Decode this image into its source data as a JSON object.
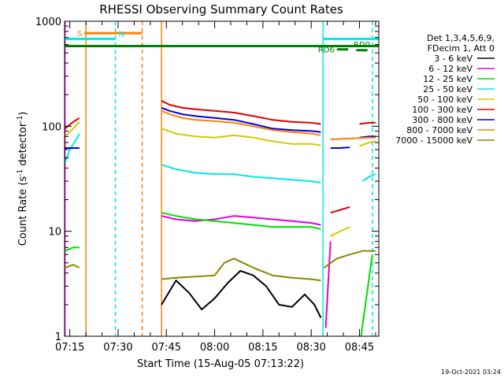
{
  "chart_data": {
    "type": "line",
    "title": "RHESSI Observing Summary Count Rates",
    "xlabel": "Start Time (15-Aug-05 07:13:22)",
    "ylabel_main": "Count Rate (s",
    "ylabel_sup1": "-1",
    "ylabel_mid": " detector",
    "ylabel_sup2": "-1",
    "ylabel_end": ")",
    "x_scale": "time",
    "y_scale": "log",
    "xlim": [
      "07:13:22",
      "08:51:00"
    ],
    "ylim": [
      1,
      1000
    ],
    "x_ticks": [
      "07:15",
      "07:30",
      "07:45",
      "08:00",
      "08:15",
      "08:30",
      "08:45"
    ],
    "y_ticks": [
      {
        "value": 1,
        "label": "1"
      },
      {
        "value": 10,
        "label": "10"
      },
      {
        "value": 100,
        "label": "100"
      },
      {
        "value": 1000,
        "label": "1000"
      }
    ],
    "legend_position": "right",
    "legend_header": [
      "Det 1,3,4,5,6,9,",
      "FDecim 1, Att 0"
    ],
    "series": [
      {
        "name": "3 - 6 keV",
        "color": "#000000",
        "segments": [
          {
            "x": [
              "07:43:30",
              "07:48",
              "07:52",
              "07:56",
              "08:00",
              "08:04",
              "08:08",
              "08:12",
              "08:16",
              "08:20",
              "08:24",
              "08:28",
              "08:31",
              "08:33"
            ],
            "y": [
              2.0,
              3.4,
              2.6,
              1.8,
              2.3,
              3.2,
              4.2,
              3.8,
              3.0,
              2.0,
              1.9,
              2.5,
              2.0,
              1.5
            ]
          }
        ]
      },
      {
        "name": "6 - 12 keV",
        "color": "#e000e0",
        "segments": [
          {
            "x": [
              "07:43:30",
              "07:48",
              "07:54",
              "08:00",
              "08:06",
              "08:12",
              "08:18",
              "08:24",
              "08:30",
              "08:33"
            ],
            "y": [
              14,
              13,
              12.5,
              13,
              14,
              13.5,
              13,
              12.5,
              12,
              11.5
            ]
          },
          {
            "x": [
              "08:34:30",
              "08:36"
            ],
            "y": [
              1.2,
              8
            ]
          }
        ]
      },
      {
        "name": "12 - 25 keV",
        "color": "#00e000",
        "segments": [
          {
            "x": [
              "07:13:30",
              "07:16",
              "07:18"
            ],
            "y": [
              6.5,
              7,
              7
            ]
          },
          {
            "x": [
              "07:43:30",
              "07:48",
              "07:54",
              "08:00",
              "08:06",
              "08:12",
              "08:18",
              "08:24",
              "08:30",
              "08:33"
            ],
            "y": [
              15,
              14,
              13,
              12.5,
              12,
              11.5,
              11,
              11,
              11,
              10.5
            ]
          },
          {
            "x": [
              "08:45:30",
              "08:49"
            ],
            "y": [
              1.0,
              6
            ]
          }
        ]
      },
      {
        "name": "25 - 50 keV",
        "color": "#00e8e8",
        "segments": [
          {
            "x": [
              "07:13:30",
              "07:15",
              "07:17",
              "07:18"
            ],
            "y": [
              45,
              60,
              75,
              85
            ]
          },
          {
            "x": [
              "07:43:30",
              "07:48",
              "07:54",
              "08:00",
              "08:06",
              "08:12",
              "08:18",
              "08:24",
              "08:30",
              "08:33"
            ],
            "y": [
              43,
              39,
              36,
              35,
              35,
              33,
              32,
              31,
              30,
              29
            ]
          },
          {
            "x": [
              "08:46",
              "08:48",
              "08:50"
            ],
            "y": [
              30,
              33,
              35
            ]
          }
        ]
      },
      {
        "name": "50 - 100 keV",
        "color": "#d8c800",
        "segments": [
          {
            "x": [
              "07:13:30",
              "07:16",
              "07:18"
            ],
            "y": [
              80,
              95,
              110
            ]
          },
          {
            "x": [
              "07:43:30",
              "07:48",
              "07:54",
              "08:00",
              "08:06",
              "08:12",
              "08:18",
              "08:24",
              "08:30",
              "08:33"
            ],
            "y": [
              95,
              85,
              80,
              78,
              82,
              78,
              72,
              68,
              68,
              66
            ]
          },
          {
            "x": [
              "08:36",
              "08:39",
              "08:42"
            ],
            "y": [
              9,
              10,
              11
            ]
          },
          {
            "x": [
              "08:45",
              "08:48",
              "08:50"
            ],
            "y": [
              65,
              70,
              72
            ]
          }
        ]
      },
      {
        "name": "100 - 300 keV",
        "color": "#e00000",
        "segments": [
          {
            "x": [
              "07:13:30",
              "07:16",
              "07:18"
            ],
            "y": [
              95,
              110,
              120
            ]
          },
          {
            "x": [
              "07:43:30",
              "07:46",
              "07:50",
              "07:54",
              "08:00",
              "08:06",
              "08:12",
              "08:18",
              "08:24",
              "08:30",
              "08:33"
            ],
            "y": [
              175,
              160,
              150,
              145,
              140,
              135,
              125,
              115,
              110,
              108,
              105
            ]
          },
          {
            "x": [
              "08:36",
              "08:39",
              "08:42"
            ],
            "y": [
              15,
              16,
              17
            ]
          },
          {
            "x": [
              "08:45",
              "08:48",
              "08:50"
            ],
            "y": [
              105,
              108,
              108
            ]
          }
        ]
      },
      {
        "name": "300 - 800 keV",
        "color": "#0000e0",
        "segments": [
          {
            "x": [
              "07:13:30",
              "07:16",
              "07:18"
            ],
            "y": [
              62,
              62,
              62
            ]
          },
          {
            "x": [
              "07:43:30",
              "07:46",
              "07:50",
              "07:54",
              "08:00",
              "08:06",
              "08:12",
              "08:18",
              "08:24",
              "08:30",
              "08:33"
            ],
            "y": [
              150,
              140,
              130,
              125,
              120,
              115,
              105,
              95,
              92,
              90,
              88
            ]
          },
          {
            "x": [
              "08:36",
              "08:39",
              "08:42"
            ],
            "y": [
              62,
              62,
              63
            ]
          },
          {
            "x": [
              "08:45",
              "08:48",
              "08:50"
            ],
            "y": [
              78,
              80,
              80
            ]
          }
        ]
      },
      {
        "name": "800 - 7000 keV",
        "color": "#ff8000",
        "segments": [
          {
            "x": [
              "07:43:30",
              "07:46",
              "07:50",
              "07:54",
              "08:00",
              "08:06",
              "08:12",
              "08:18",
              "08:24",
              "08:30",
              "08:33"
            ],
            "y": [
              140,
              130,
              120,
              115,
              112,
              108,
              100,
              92,
              88,
              85,
              82
            ]
          },
          {
            "x": [
              "08:36",
              "08:40",
              "08:44",
              "08:48",
              "08:50"
            ],
            "y": [
              75,
              76,
              77,
              78,
              78
            ]
          }
        ]
      },
      {
        "name": "7000 - 15000 keV",
        "color": "#888800",
        "segments": [
          {
            "x": [
              "07:13:30",
              "07:16",
              "07:18"
            ],
            "y": [
              4.5,
              4.8,
              4.5
            ]
          },
          {
            "x": [
              "07:43:30",
              "07:48",
              "07:54",
              "08:00",
              "08:03",
              "08:06",
              "08:12",
              "08:18",
              "08:24",
              "08:30",
              "08:33"
            ],
            "y": [
              3.5,
              3.6,
              3.7,
              3.8,
              5.0,
              5.5,
              4.5,
              3.8,
              3.6,
              3.5,
              3.4
            ]
          },
          {
            "x": [
              "08:34",
              "08:38",
              "08:42",
              "08:46",
              "08:50"
            ],
            "y": [
              4.5,
              5.5,
              6.0,
              6.5,
              6.5
            ]
          }
        ]
      }
    ],
    "vertical_markers": [
      {
        "x": "07:13:30",
        "color": "#ff00ff",
        "style": "solid"
      },
      {
        "x": "07:20:00",
        "color": "#ff8000",
        "style": "solid"
      },
      {
        "x": "07:29:10",
        "color": "#00e8e8",
        "style": "dashed"
      },
      {
        "x": "07:37:30",
        "color": "#ff8000",
        "style": "dashed"
      },
      {
        "x": "07:43:30",
        "color": "#ff8000",
        "style": "solid"
      },
      {
        "x": "08:33:40",
        "color": "#00e8e8",
        "style": "solid"
      },
      {
        "x": "08:49:00",
        "color": "#00e8e8",
        "style": "dashed"
      }
    ],
    "flag_bars": [
      {
        "label": "S",
        "color": "#ff8000",
        "x0": "07:19:30",
        "x1": "07:37:30",
        "y": 770,
        "label_side": "left"
      },
      {
        "label": "N",
        "color": "#00e8e8",
        "x0": "07:13:22",
        "x1": "07:29:10",
        "y": 680,
        "label_side": "right"
      },
      {
        "label": "",
        "color": "#00e8e8",
        "x0": "08:33:40",
        "x1": "08:51:00",
        "y": 680,
        "label_side": "none"
      },
      {
        "label": "",
        "color": "#008000",
        "x0": "07:13:22",
        "x1": "08:51:00",
        "y": 580,
        "label_side": "none"
      },
      {
        "label": "RD0",
        "color": "#008000",
        "x0": "08:44:00",
        "x1": "08:47:30",
        "y": 530,
        "label_side": "above"
      },
      {
        "label": "RD6",
        "color": "#008000",
        "x0": "08:38:00",
        "x1": "08:41:30",
        "y": 540,
        "label_side": "left"
      }
    ],
    "timestamp": "19-Oct-2021 03:24"
  }
}
